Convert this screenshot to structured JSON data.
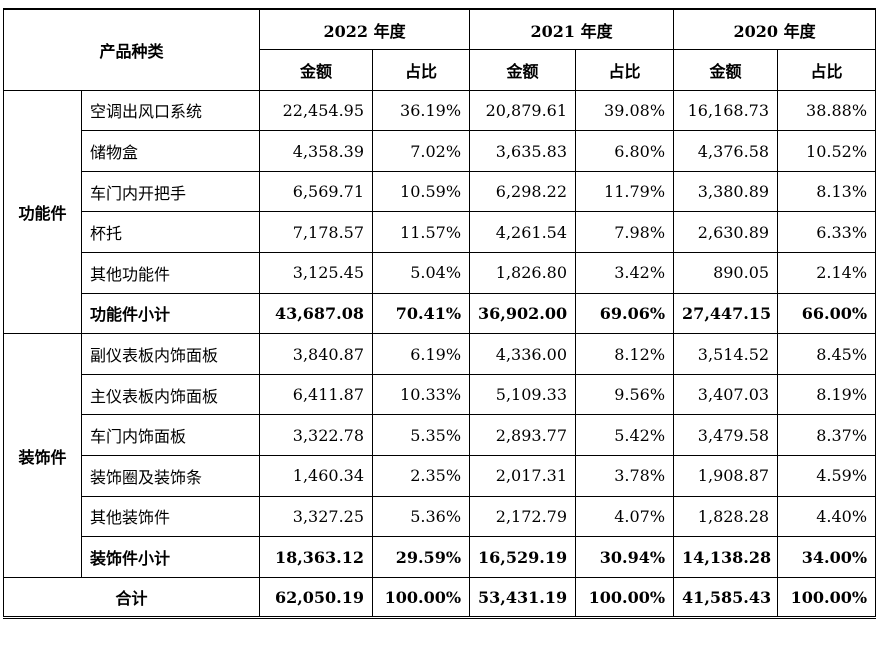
{
  "header": {
    "product_type": "产品种类",
    "years": [
      "2022 年度",
      "2021 年度",
      "2020 年度"
    ],
    "amount": "金额",
    "ratio": "占比"
  },
  "groups": [
    {
      "category": "功能件",
      "rows": [
        {
          "name": "空调出风口系统",
          "v": [
            "22,454.95",
            "36.19%",
            "20,879.61",
            "39.08%",
            "16,168.73",
            "38.88%"
          ]
        },
        {
          "name": "储物盒",
          "v": [
            "4,358.39",
            "7.02%",
            "3,635.83",
            "6.80%",
            "4,376.58",
            "10.52%"
          ]
        },
        {
          "name": "车门内开把手",
          "v": [
            "6,569.71",
            "10.59%",
            "6,298.22",
            "11.79%",
            "3,380.89",
            "8.13%"
          ]
        },
        {
          "name": "杯托",
          "v": [
            "7,178.57",
            "11.57%",
            "4,261.54",
            "7.98%",
            "2,630.89",
            "6.33%"
          ]
        },
        {
          "name": "其他功能件",
          "v": [
            "3,125.45",
            "5.04%",
            "1,826.80",
            "3.42%",
            "890.05",
            "2.14%"
          ]
        }
      ],
      "subtotal": {
        "name": "功能件小计",
        "v": [
          "43,687.08",
          "70.41%",
          "36,902.00",
          "69.06%",
          "27,447.15",
          "66.00%"
        ]
      }
    },
    {
      "category": "装饰件",
      "rows": [
        {
          "name": "副仪表板内饰面板",
          "v": [
            "3,840.87",
            "6.19%",
            "4,336.00",
            "8.12%",
            "3,514.52",
            "8.45%"
          ]
        },
        {
          "name": "主仪表板内饰面板",
          "v": [
            "6,411.87",
            "10.33%",
            "5,109.33",
            "9.56%",
            "3,407.03",
            "8.19%"
          ]
        },
        {
          "name": "车门内饰面板",
          "v": [
            "3,322.78",
            "5.35%",
            "2,893.77",
            "5.42%",
            "3,479.58",
            "8.37%"
          ]
        },
        {
          "name": "装饰圈及装饰条",
          "v": [
            "1,460.34",
            "2.35%",
            "2,017.31",
            "3.78%",
            "1,908.87",
            "4.59%"
          ]
        },
        {
          "name": "其他装饰件",
          "v": [
            "3,327.25",
            "5.36%",
            "2,172.79",
            "4.07%",
            "1,828.28",
            "4.40%"
          ]
        }
      ],
      "subtotal": {
        "name": "装饰件小计",
        "v": [
          "18,363.12",
          "29.59%",
          "16,529.19",
          "30.94%",
          "14,138.28",
          "34.00%"
        ]
      }
    }
  ],
  "total": {
    "name": "合计",
    "v": [
      "62,050.19",
      "100.00%",
      "53,431.19",
      "100.00%",
      "41,585.43",
      "100.00%"
    ]
  }
}
